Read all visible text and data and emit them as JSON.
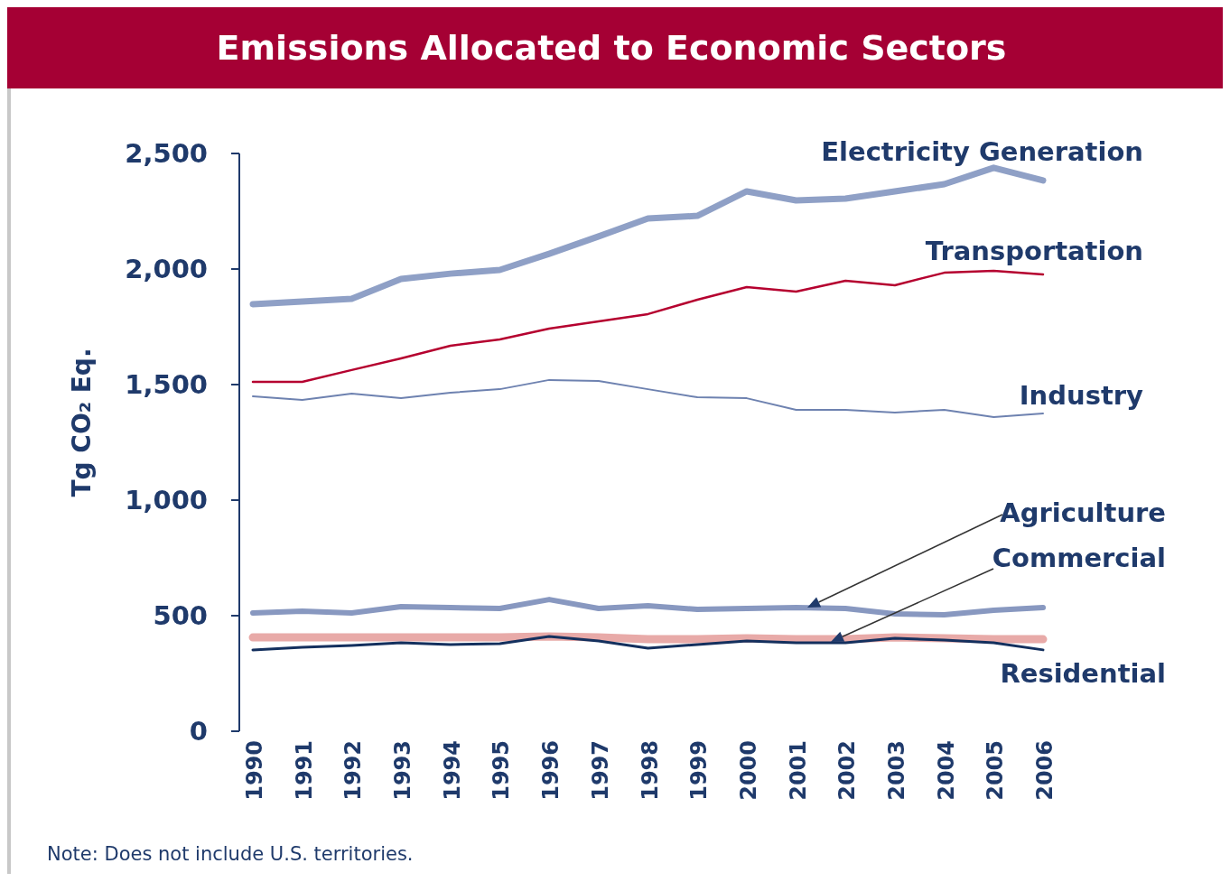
{
  "chart_data": {
    "type": "line",
    "title": "Emissions Allocated to Economic Sectors",
    "ylabel": "Tg CO₂ Eq.",
    "categories": [
      "1990",
      "1991",
      "1992",
      "1993",
      "1994",
      "1995",
      "1996",
      "1997",
      "1998",
      "1999",
      "2000",
      "2001",
      "2002",
      "2003",
      "2004",
      "2005",
      "2006"
    ],
    "series": [
      {
        "name": "Electricity Generation",
        "color": "#8fa0c6",
        "values": [
          1848,
          1859,
          1871,
          1957,
          1980,
          1996,
          2066,
          2141,
          2219,
          2230,
          2336,
          2297,
          2305,
          2336,
          2367,
          2438,
          2383
        ]
      },
      {
        "name": "Transportation",
        "color": "#b5002f",
        "values": [
          1512,
          1512,
          1563,
          1613,
          1668,
          1695,
          1742,
          1773,
          1805,
          1867,
          1922,
          1902,
          1949,
          1930,
          1984,
          1992,
          1977
        ]
      },
      {
        "name": "Industry",
        "color": "#6e82b0",
        "values": [
          1449,
          1434,
          1461,
          1441,
          1465,
          1480,
          1520,
          1516,
          1480,
          1445,
          1441,
          1391,
          1391,
          1379,
          1391,
          1359,
          1375
        ]
      },
      {
        "name": "Agriculture",
        "color": "#8898c0",
        "values": [
          512,
          520,
          512,
          539,
          535,
          531,
          570,
          531,
          543,
          527,
          531,
          535,
          531,
          508,
          504,
          523,
          535
        ]
      },
      {
        "name": "Commercial",
        "color": "#e8aaa8",
        "values": [
          406,
          406,
          406,
          406,
          406,
          406,
          410,
          406,
          398,
          398,
          402,
          398,
          398,
          406,
          402,
          398,
          398
        ]
      },
      {
        "name": "Residential",
        "color": "#14305e",
        "values": [
          352,
          363,
          371,
          383,
          375,
          379,
          410,
          391,
          359,
          375,
          391,
          383,
          383,
          402,
          395,
          383,
          352
        ]
      }
    ],
    "ylim": [
      0,
      2500
    ],
    "yticks": [
      0,
      500,
      {
        "value": 1000,
        "label": "1,000"
      },
      {
        "value": 1500,
        "label": "1,500"
      },
      {
        "value": 2000,
        "label": "2,000"
      },
      {
        "value": 2500,
        "label": "2,500"
      }
    ],
    "grid": false,
    "marker": "none",
    "line_style": "solid",
    "annotations": [
      "Note: Does not include U.S. territories."
    ]
  }
}
